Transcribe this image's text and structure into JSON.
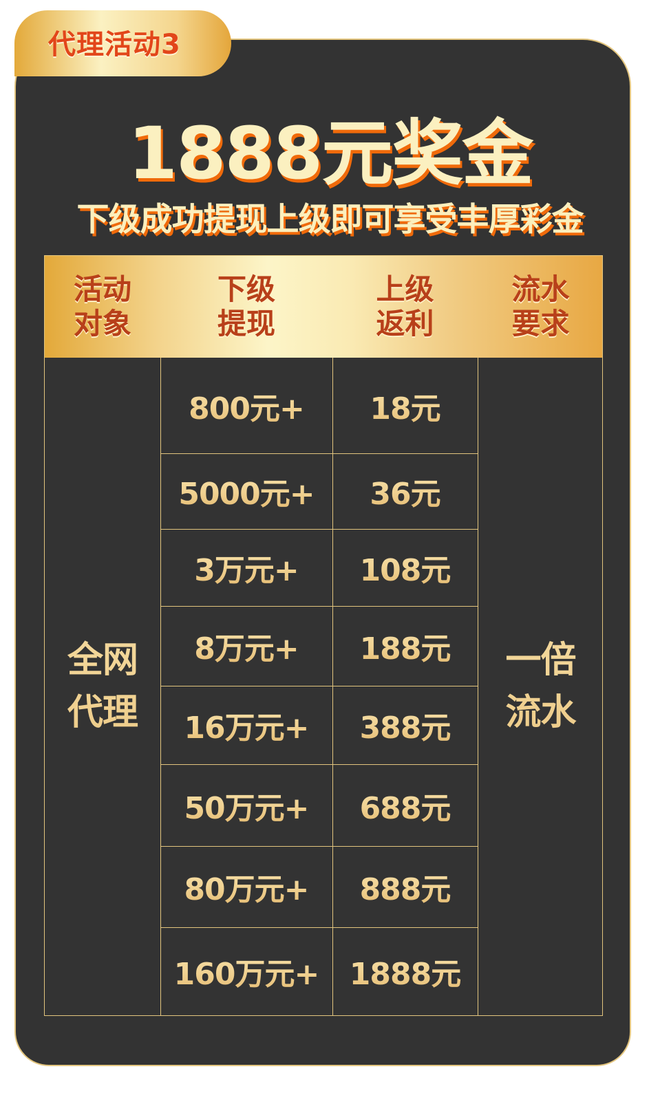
{
  "tab_label": "代理活动3",
  "title": "1888元奖金",
  "subtitle": "下级成功提现上级即可享受丰厚彩金",
  "table": {
    "headers": [
      "活动\n对象",
      "下级\n提现",
      "上级\n返利",
      "流水\n要求"
    ],
    "target": "全网\n代理",
    "rows": [
      {
        "withdraw": "800元+",
        "rebate": "18元"
      },
      {
        "withdraw": "5000元+",
        "rebate": "36元"
      },
      {
        "withdraw": "3万元+",
        "rebate": "108元"
      },
      {
        "withdraw": "8万元+",
        "rebate": "188元"
      },
      {
        "withdraw": "16万元+",
        "rebate": "388元"
      },
      {
        "withdraw": "50万元+",
        "rebate": "688元"
      },
      {
        "withdraw": "80万元+",
        "rebate": "888元"
      },
      {
        "withdraw": "160万元+",
        "rebate": "1888元"
      }
    ],
    "turnover": "一倍\n流水"
  },
  "colors": {
    "background": "#333333",
    "gold": "#e3c57e",
    "accent_orange": "#f06a0a",
    "header_text": "#b8401a"
  }
}
